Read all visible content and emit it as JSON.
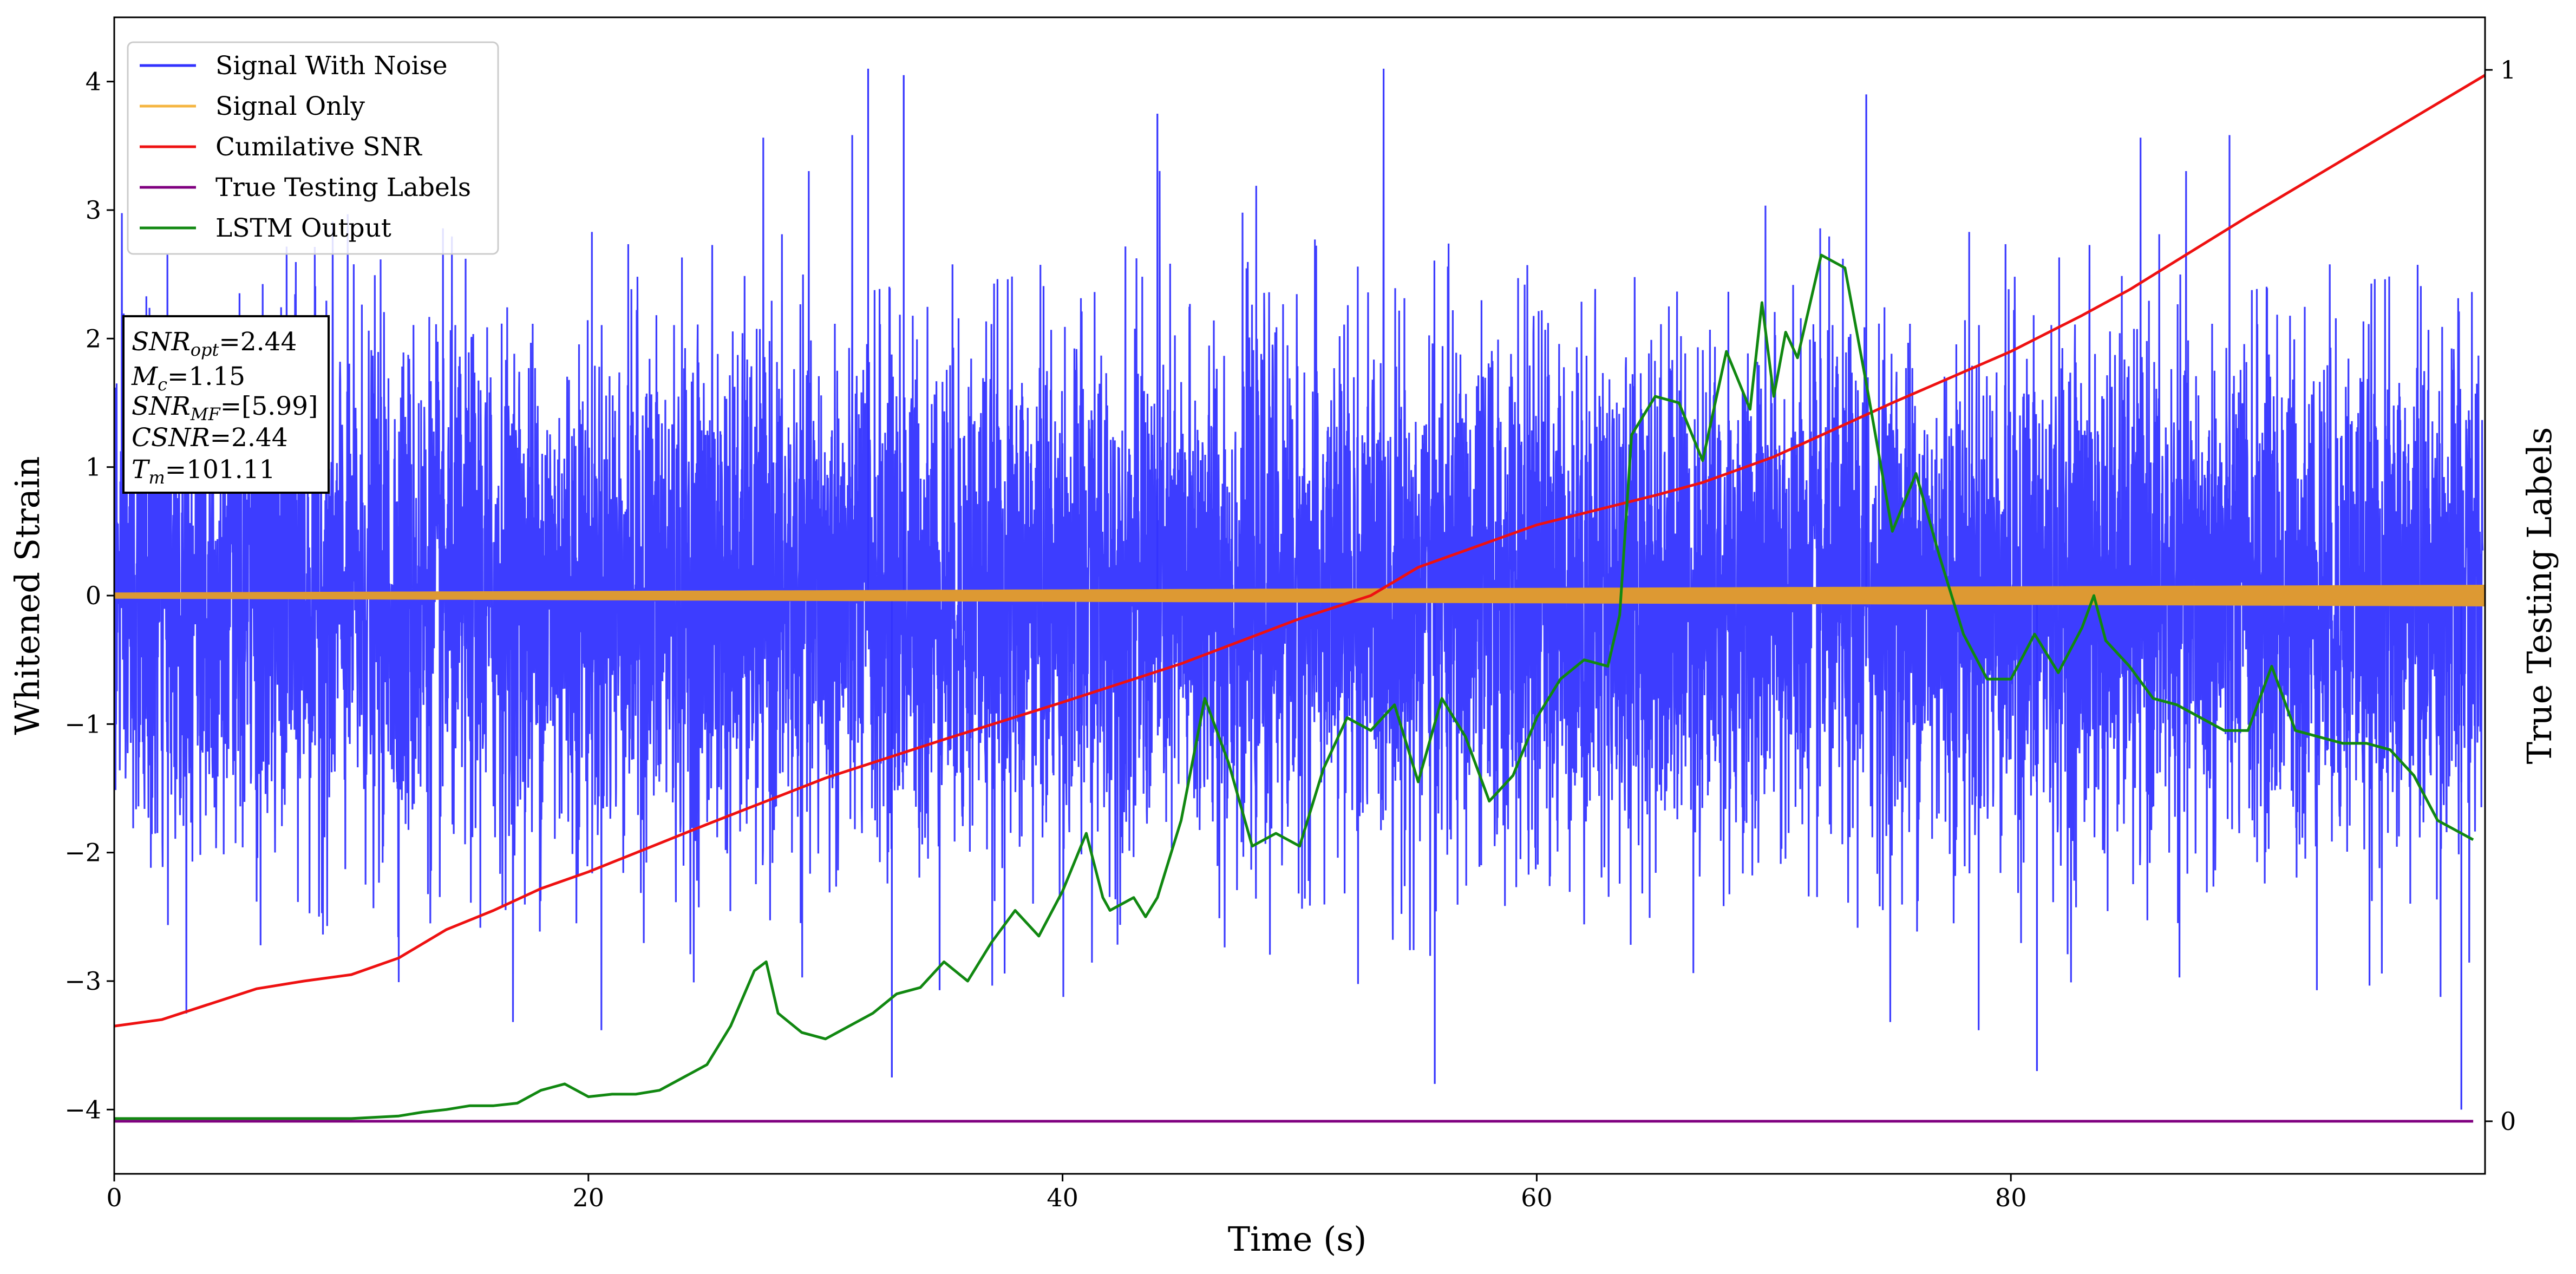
{
  "chart_data": {
    "type": "line",
    "title": "",
    "xlabel": "Time (s)",
    "ylabel": "Whitened Strain",
    "y2label": "True Testing Labels",
    "xlim": [
      0,
      100
    ],
    "ylim": [
      -4.5,
      4.5
    ],
    "y2lim": [
      -0.05,
      1.05
    ],
    "xticks": [
      "0",
      "20",
      "40",
      "60",
      "80"
    ],
    "xtick_values": [
      0,
      20,
      40,
      60,
      80
    ],
    "yticks": [
      "−4",
      "−3",
      "−2",
      "−1",
      "0",
      "1",
      "2",
      "3",
      "4"
    ],
    "ytick_values": [
      -4,
      -3,
      -2,
      -1,
      0,
      1,
      2,
      3,
      4
    ],
    "y2ticks": [
      "0",
      "1"
    ],
    "y2tick_values": [
      0,
      1
    ],
    "legend": {
      "placement": "upper-left",
      "entries": [
        {
          "label": "Signal With Noise",
          "color": "#3333ff"
        },
        {
          "label": "Signal Only",
          "color": "#f5b642"
        },
        {
          "label": "Cumilative SNR",
          "color": "#ee1111"
        },
        {
          "label": "True Testing Labels",
          "color": "#800080"
        },
        {
          "label": "LSTM Output",
          "color": "#118811"
        }
      ]
    },
    "annotation": [
      {
        "main": "SNR",
        "sub": "opt",
        "value": "=2.44"
      },
      {
        "main": "M",
        "sub": "c",
        "value": "=1.15"
      },
      {
        "main": "SNR",
        "sub": "MF",
        "value": "=[5.99]"
      },
      {
        "main": "CSNR",
        "sub": "",
        "value": "=2.44"
      },
      {
        "main": "T",
        "sub": "m",
        "value": "=101.11"
      }
    ],
    "series": [
      {
        "name": "Signal With Noise",
        "axis": "left",
        "color": "#3333ff",
        "style": "dense-noise",
        "noise_std": 1.0,
        "peak_values": [
          4.1,
          4.05,
          3.75,
          3.9,
          -3.75,
          -3.8,
          -4.0,
          -3.7
        ]
      },
      {
        "name": "Signal Only",
        "axis": "left",
        "color": "#dd9933",
        "style": "band",
        "amplitude_start": 0.02,
        "amplitude_end": 0.08
      },
      {
        "name": "Cumilative SNR",
        "axis": "left",
        "color": "#ee1111",
        "x": [
          0,
          2,
          4,
          6,
          8,
          10,
          12,
          14,
          16,
          18,
          20,
          25,
          30,
          35,
          40,
          45,
          50,
          53,
          55,
          60,
          65,
          67,
          70,
          75,
          80,
          83,
          85,
          90,
          95,
          100
        ],
        "y": [
          -3.35,
          -3.3,
          -3.18,
          -3.06,
          -3.0,
          -2.95,
          -2.82,
          -2.6,
          -2.45,
          -2.28,
          -2.15,
          -1.78,
          -1.42,
          -1.12,
          -0.83,
          -0.53,
          -0.18,
          0.0,
          0.22,
          0.55,
          0.78,
          0.88,
          1.08,
          1.5,
          1.9,
          2.18,
          2.38,
          2.95,
          3.5,
          4.05
        ]
      },
      {
        "name": "True Testing Labels",
        "axis": "right",
        "color": "#800080",
        "x": [
          0,
          99.5
        ],
        "y": [
          0,
          0
        ]
      },
      {
        "name": "LSTM Output",
        "axis": "left",
        "color": "#118811",
        "x": [
          0,
          10,
          12,
          13,
          14,
          15,
          16,
          17,
          18,
          19,
          20,
          21,
          22,
          23,
          24,
          25,
          26,
          27,
          27.5,
          28,
          29,
          30,
          31,
          32,
          33,
          34,
          35,
          36,
          37,
          38,
          39,
          40,
          41,
          41.7,
          42,
          43,
          43.5,
          44,
          45,
          46,
          47,
          48,
          49,
          50,
          51,
          52,
          53,
          54,
          55,
          56,
          57,
          58,
          59,
          60,
          61,
          62,
          63,
          63.5,
          64,
          65,
          66,
          67,
          68,
          69,
          69.5,
          70,
          70.5,
          71,
          72,
          73,
          74,
          75,
          76,
          77,
          78,
          79,
          80,
          81,
          82,
          83,
          83.5,
          84,
          85,
          86,
          87,
          88,
          89,
          90,
          91,
          92,
          93,
          94,
          95,
          96,
          97,
          98,
          99.5
        ],
        "y": [
          -4.07,
          -4.07,
          -4.05,
          -4.02,
          -4.0,
          -3.97,
          -3.97,
          -3.95,
          -3.85,
          -3.8,
          -3.9,
          -3.88,
          -3.88,
          -3.85,
          -3.75,
          -3.65,
          -3.35,
          -2.92,
          -2.85,
          -3.25,
          -3.4,
          -3.45,
          -3.35,
          -3.25,
          -3.1,
          -3.05,
          -2.85,
          -3.0,
          -2.7,
          -2.45,
          -2.65,
          -2.3,
          -1.85,
          -2.35,
          -2.45,
          -2.35,
          -2.5,
          -2.35,
          -1.75,
          -0.8,
          -1.3,
          -1.95,
          -1.85,
          -1.95,
          -1.35,
          -0.95,
          -1.05,
          -0.85,
          -1.45,
          -0.8,
          -1.1,
          -1.6,
          -1.4,
          -0.95,
          -0.65,
          -0.5,
          -0.55,
          -0.15,
          1.25,
          1.55,
          1.5,
          1.05,
          1.9,
          1.45,
          2.28,
          1.55,
          2.05,
          1.85,
          2.65,
          2.55,
          1.55,
          0.5,
          0.95,
          0.3,
          -0.3,
          -0.65,
          -0.65,
          -0.3,
          -0.6,
          -0.25,
          0.0,
          -0.35,
          -0.55,
          -0.8,
          -0.85,
          -0.95,
          -1.05,
          -1.05,
          -0.55,
          -1.05,
          -1.1,
          -1.15,
          -1.15,
          -1.2,
          -1.4,
          -1.75,
          -1.9
        ]
      }
    ]
  }
}
